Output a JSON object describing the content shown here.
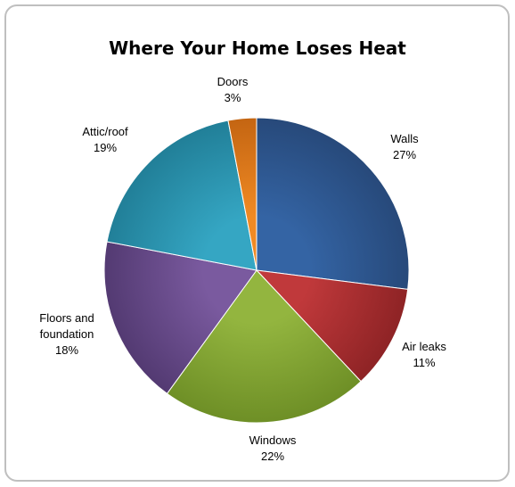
{
  "chart_data": {
    "type": "pie",
    "title": "Where Your Home Loses Heat",
    "slices": [
      {
        "name": "Walls",
        "value": 27,
        "label": [
          "Walls",
          "27%"
        ],
        "color": "#3464a4",
        "color_dark": "#27497a"
      },
      {
        "name": "Air leaks",
        "value": 11,
        "label": [
          "Air leaks",
          "11%"
        ],
        "color": "#c0393b",
        "color_dark": "#8e2325"
      },
      {
        "name": "Windows",
        "value": 22,
        "label": [
          "Windows",
          "22%"
        ],
        "color": "#93b53f",
        "color_dark": "#6e8f26"
      },
      {
        "name": "Floors and foundation",
        "value": 18,
        "label": [
          "Floors and",
          "foundation",
          "18%"
        ],
        "color": "#7a5a9f",
        "color_dark": "#533a72"
      },
      {
        "name": "Attic/roof",
        "value": 19,
        "label": [
          "Attic/roof",
          "19%"
        ],
        "color": "#35a6c3",
        "color_dark": "#217f98"
      },
      {
        "name": "Doors",
        "value": 3,
        "label": [
          "Doors",
          "3%"
        ],
        "color": "#f08a24",
        "color_dark": "#c46512"
      }
    ],
    "start_angle": "12 o'clock",
    "direction": "clockwise",
    "legend": "none",
    "data_labels": "outside"
  }
}
